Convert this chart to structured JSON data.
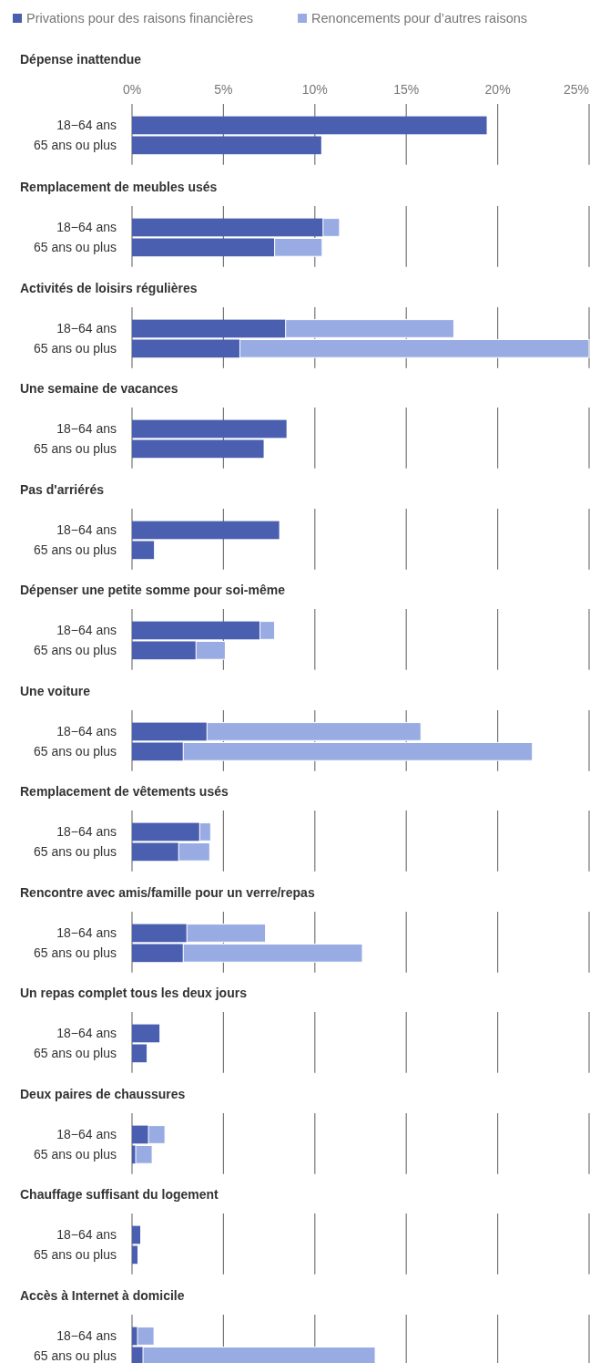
{
  "chart_data": [
    {
      "type": "bar",
      "orientation": "horizontal",
      "stacked": true,
      "title": "Dépense inattendue",
      "categories": [
        "18−64 ans",
        "65 ans ou plus"
      ],
      "legend": "top",
      "grid": "x",
      "xlim": [
        0,
        25
      ],
      "xticks": [
        {
          "value": 0,
          "label": "0%"
        },
        {
          "value": 5,
          "label": "5%"
        },
        {
          "value": 10,
          "label": "10%"
        },
        {
          "value": 15,
          "label": "15%"
        },
        {
          "value": 20,
          "label": "20%"
        },
        {
          "value": 25,
          "label": "25%"
        }
      ],
      "series": [
        {
          "name": "Privations pour des raisons financières",
          "color": "#4a5fb0",
          "values": [
            19.4,
            10.35
          ]
        },
        {
          "name": "Renoncements pour d’autres raisons",
          "color": "#98abe3",
          "values": [
            0,
            0
          ]
        }
      ]
    },
    {
      "type": "bar",
      "orientation": "horizontal",
      "stacked": true,
      "title": "Remplacement de meubles usés",
      "categories": [
        "18−64 ans",
        "65 ans ou plus"
      ],
      "grid": "x",
      "tick_labels": "y",
      "xlim": [
        0,
        25
      ],
      "xticks": [
        {
          "value": 0,
          "label": null
        },
        {
          "value": 5,
          "label": null
        },
        {
          "value": 10,
          "label": null
        },
        {
          "value": 15,
          "label": null
        },
        {
          "value": 20,
          "label": null
        },
        {
          "value": 25,
          "label": null
        }
      ],
      "series": [
        {
          "color": "#4a5fb0",
          "values": [
            10.45,
            7.8
          ]
        },
        {
          "color": "#98abe3",
          "values": [
            0.9,
            2.6
          ]
        }
      ]
    },
    {
      "type": "bar",
      "orientation": "horizontal",
      "stacked": true,
      "title": "Activités de loisirs régulières",
      "categories": [
        "18−64 ans",
        "65 ans ou plus"
      ],
      "grid": "x",
      "tick_labels": "y",
      "xlim": [
        0,
        25
      ],
      "xticks": [
        {
          "value": 0,
          "label": null
        },
        {
          "value": 5,
          "label": null
        },
        {
          "value": 10,
          "label": null
        },
        {
          "value": 15,
          "label": null
        },
        {
          "value": 20,
          "label": null
        },
        {
          "value": 25,
          "label": null
        }
      ],
      "series": [
        {
          "color": "#4a5fb0",
          "values": [
            8.4,
            5.9
          ]
        },
        {
          "color": "#98abe3",
          "values": [
            9.2,
            19.1
          ]
        }
      ]
    },
    {
      "type": "bar",
      "orientation": "horizontal",
      "stacked": true,
      "title": "Une semaine de vacances",
      "categories": [
        "18−64 ans",
        "65 ans ou plus"
      ],
      "grid": "x",
      "tick_labels": "y",
      "xlim": [
        0,
        25
      ],
      "xticks": [
        {
          "value": 0,
          "label": null
        },
        {
          "value": 5,
          "label": null
        },
        {
          "value": 10,
          "label": null
        },
        {
          "value": 15,
          "label": null
        },
        {
          "value": 20,
          "label": null
        },
        {
          "value": 25,
          "label": null
        }
      ],
      "series": [
        {
          "color": "#4a5fb0",
          "values": [
            8.45,
            7.2
          ]
        },
        {
          "color": "#98abe3",
          "values": [
            0,
            0
          ]
        }
      ]
    },
    {
      "type": "bar",
      "orientation": "horizontal",
      "stacked": true,
      "title": "Pas d'arriérés",
      "categories": [
        "18−64 ans",
        "65 ans ou plus"
      ],
      "grid": "x",
      "tick_labels": "y",
      "xlim": [
        0,
        25
      ],
      "xticks": [
        {
          "value": 0,
          "label": null
        },
        {
          "value": 5,
          "label": null
        },
        {
          "value": 10,
          "label": null
        },
        {
          "value": 15,
          "label": null
        },
        {
          "value": 20,
          "label": null
        },
        {
          "value": 25,
          "label": null
        }
      ],
      "series": [
        {
          "color": "#4a5fb0",
          "values": [
            8.05,
            1.2
          ]
        },
        {
          "color": "#98abe3",
          "values": [
            0,
            0
          ]
        }
      ]
    },
    {
      "type": "bar",
      "orientation": "horizontal",
      "stacked": true,
      "title": "Dépenser une petite somme pour soi-même",
      "categories": [
        "18−64 ans",
        "65 ans ou plus"
      ],
      "grid": "x",
      "tick_labels": "y",
      "xlim": [
        0,
        25
      ],
      "xticks": [
        {
          "value": 0,
          "label": null
        },
        {
          "value": 5,
          "label": null
        },
        {
          "value": 10,
          "label": null
        },
        {
          "value": 15,
          "label": null
        },
        {
          "value": 20,
          "label": null
        },
        {
          "value": 25,
          "label": null
        }
      ],
      "series": [
        {
          "color": "#4a5fb0",
          "values": [
            7.0,
            3.5
          ]
        },
        {
          "color": "#98abe3",
          "values": [
            0.8,
            1.6
          ]
        }
      ]
    },
    {
      "type": "bar",
      "orientation": "horizontal",
      "stacked": true,
      "title": "Une voiture",
      "categories": [
        "18−64 ans",
        "65 ans ou plus"
      ],
      "grid": "x",
      "tick_labels": "y",
      "xlim": [
        0,
        25
      ],
      "xticks": [
        {
          "value": 0,
          "label": null
        },
        {
          "value": 5,
          "label": null
        },
        {
          "value": 10,
          "label": null
        },
        {
          "value": 15,
          "label": null
        },
        {
          "value": 20,
          "label": null
        },
        {
          "value": 25,
          "label": null
        }
      ],
      "series": [
        {
          "color": "#4a5fb0",
          "values": [
            4.1,
            2.8
          ]
        },
        {
          "color": "#98abe3",
          "values": [
            11.7,
            19.1
          ]
        }
      ]
    },
    {
      "type": "bar",
      "orientation": "horizontal",
      "stacked": true,
      "title": "Remplacement de vêtements usés",
      "categories": [
        "18−64 ans",
        "65 ans ou plus"
      ],
      "grid": "x",
      "tick_labels": "y",
      "xlim": [
        0,
        25
      ],
      "xticks": [
        {
          "value": 0,
          "label": null
        },
        {
          "value": 5,
          "label": null
        },
        {
          "value": 10,
          "label": null
        },
        {
          "value": 15,
          "label": null
        },
        {
          "value": 20,
          "label": null
        },
        {
          "value": 25,
          "label": null
        }
      ],
      "series": [
        {
          "color": "#4a5fb0",
          "values": [
            3.7,
            2.55
          ]
        },
        {
          "color": "#98abe3",
          "values": [
            0.6,
            1.7
          ]
        }
      ]
    },
    {
      "type": "bar",
      "orientation": "horizontal",
      "stacked": true,
      "title": "Rencontre avec amis/famille pour un verre/repas",
      "categories": [
        "18−64 ans",
        "65 ans ou plus"
      ],
      "grid": "x",
      "tick_labels": "y",
      "xlim": [
        0,
        25
      ],
      "xticks": [
        {
          "value": 0,
          "label": null
        },
        {
          "value": 5,
          "label": null
        },
        {
          "value": 10,
          "label": null
        },
        {
          "value": 15,
          "label": null
        },
        {
          "value": 20,
          "label": null
        },
        {
          "value": 25,
          "label": null
        }
      ],
      "series": [
        {
          "color": "#4a5fb0",
          "values": [
            3.0,
            2.8
          ]
        },
        {
          "color": "#98abe3",
          "values": [
            4.3,
            9.8
          ]
        }
      ]
    },
    {
      "type": "bar",
      "orientation": "horizontal",
      "stacked": true,
      "title": "Un repas complet tous les deux jours",
      "categories": [
        "18−64 ans",
        "65 ans ou plus"
      ],
      "grid": "x",
      "tick_labels": "y",
      "xlim": [
        0,
        25
      ],
      "xticks": [
        {
          "value": 0,
          "label": null
        },
        {
          "value": 5,
          "label": null
        },
        {
          "value": 10,
          "label": null
        },
        {
          "value": 15,
          "label": null
        },
        {
          "value": 20,
          "label": null
        },
        {
          "value": 25,
          "label": null
        }
      ],
      "series": [
        {
          "color": "#4a5fb0",
          "values": [
            1.5,
            0.8
          ]
        },
        {
          "color": "#98abe3",
          "values": [
            0,
            0
          ]
        }
      ]
    },
    {
      "type": "bar",
      "orientation": "horizontal",
      "stacked": true,
      "title": "Deux paires de chaussures",
      "categories": [
        "18−64 ans",
        "65 ans ou plus"
      ],
      "grid": "x",
      "tick_labels": "y",
      "xlim": [
        0,
        25
      ],
      "xticks": [
        {
          "value": 0,
          "label": null
        },
        {
          "value": 5,
          "label": null
        },
        {
          "value": 10,
          "label": null
        },
        {
          "value": 15,
          "label": null
        },
        {
          "value": 20,
          "label": null
        },
        {
          "value": 25,
          "label": null
        }
      ],
      "series": [
        {
          "color": "#4a5fb0",
          "values": [
            0.9,
            0.2
          ]
        },
        {
          "color": "#98abe3",
          "values": [
            0.9,
            0.9
          ]
        }
      ]
    },
    {
      "type": "bar",
      "orientation": "horizontal",
      "stacked": true,
      "title": "Chauffage suffisant du logement",
      "categories": [
        "18−64 ans",
        "65 ans ou plus"
      ],
      "grid": "x",
      "tick_labels": "y",
      "xlim": [
        0,
        25
      ],
      "xticks": [
        {
          "value": 0,
          "label": null
        },
        {
          "value": 5,
          "label": null
        },
        {
          "value": 10,
          "label": null
        },
        {
          "value": 15,
          "label": null
        },
        {
          "value": 20,
          "label": null
        },
        {
          "value": 25,
          "label": null
        }
      ],
      "series": [
        {
          "color": "#4a5fb0",
          "values": [
            0.45,
            0.3
          ]
        },
        {
          "color": "#98abe3",
          "values": [
            0,
            0
          ]
        }
      ]
    },
    {
      "type": "bar",
      "orientation": "horizontal",
      "stacked": true,
      "title": "Accès à Internet à domicile",
      "categories": [
        "18−64 ans",
        "65 ans ou plus"
      ],
      "grid": "x",
      "tick_labels": "y",
      "xlim": [
        0,
        25
      ],
      "xticks": [
        {
          "value": 0,
          "label": null
        },
        {
          "value": 5,
          "label": null
        },
        {
          "value": 10,
          "label": null
        },
        {
          "value": 15,
          "label": null
        },
        {
          "value": 20,
          "label": null
        },
        {
          "value": 25,
          "label": null
        }
      ],
      "series": [
        {
          "color": "#4a5fb0",
          "values": [
            0.3,
            0.6
          ]
        },
        {
          "color": "#98abe3",
          "values": [
            0.9,
            12.7
          ]
        }
      ]
    }
  ]
}
